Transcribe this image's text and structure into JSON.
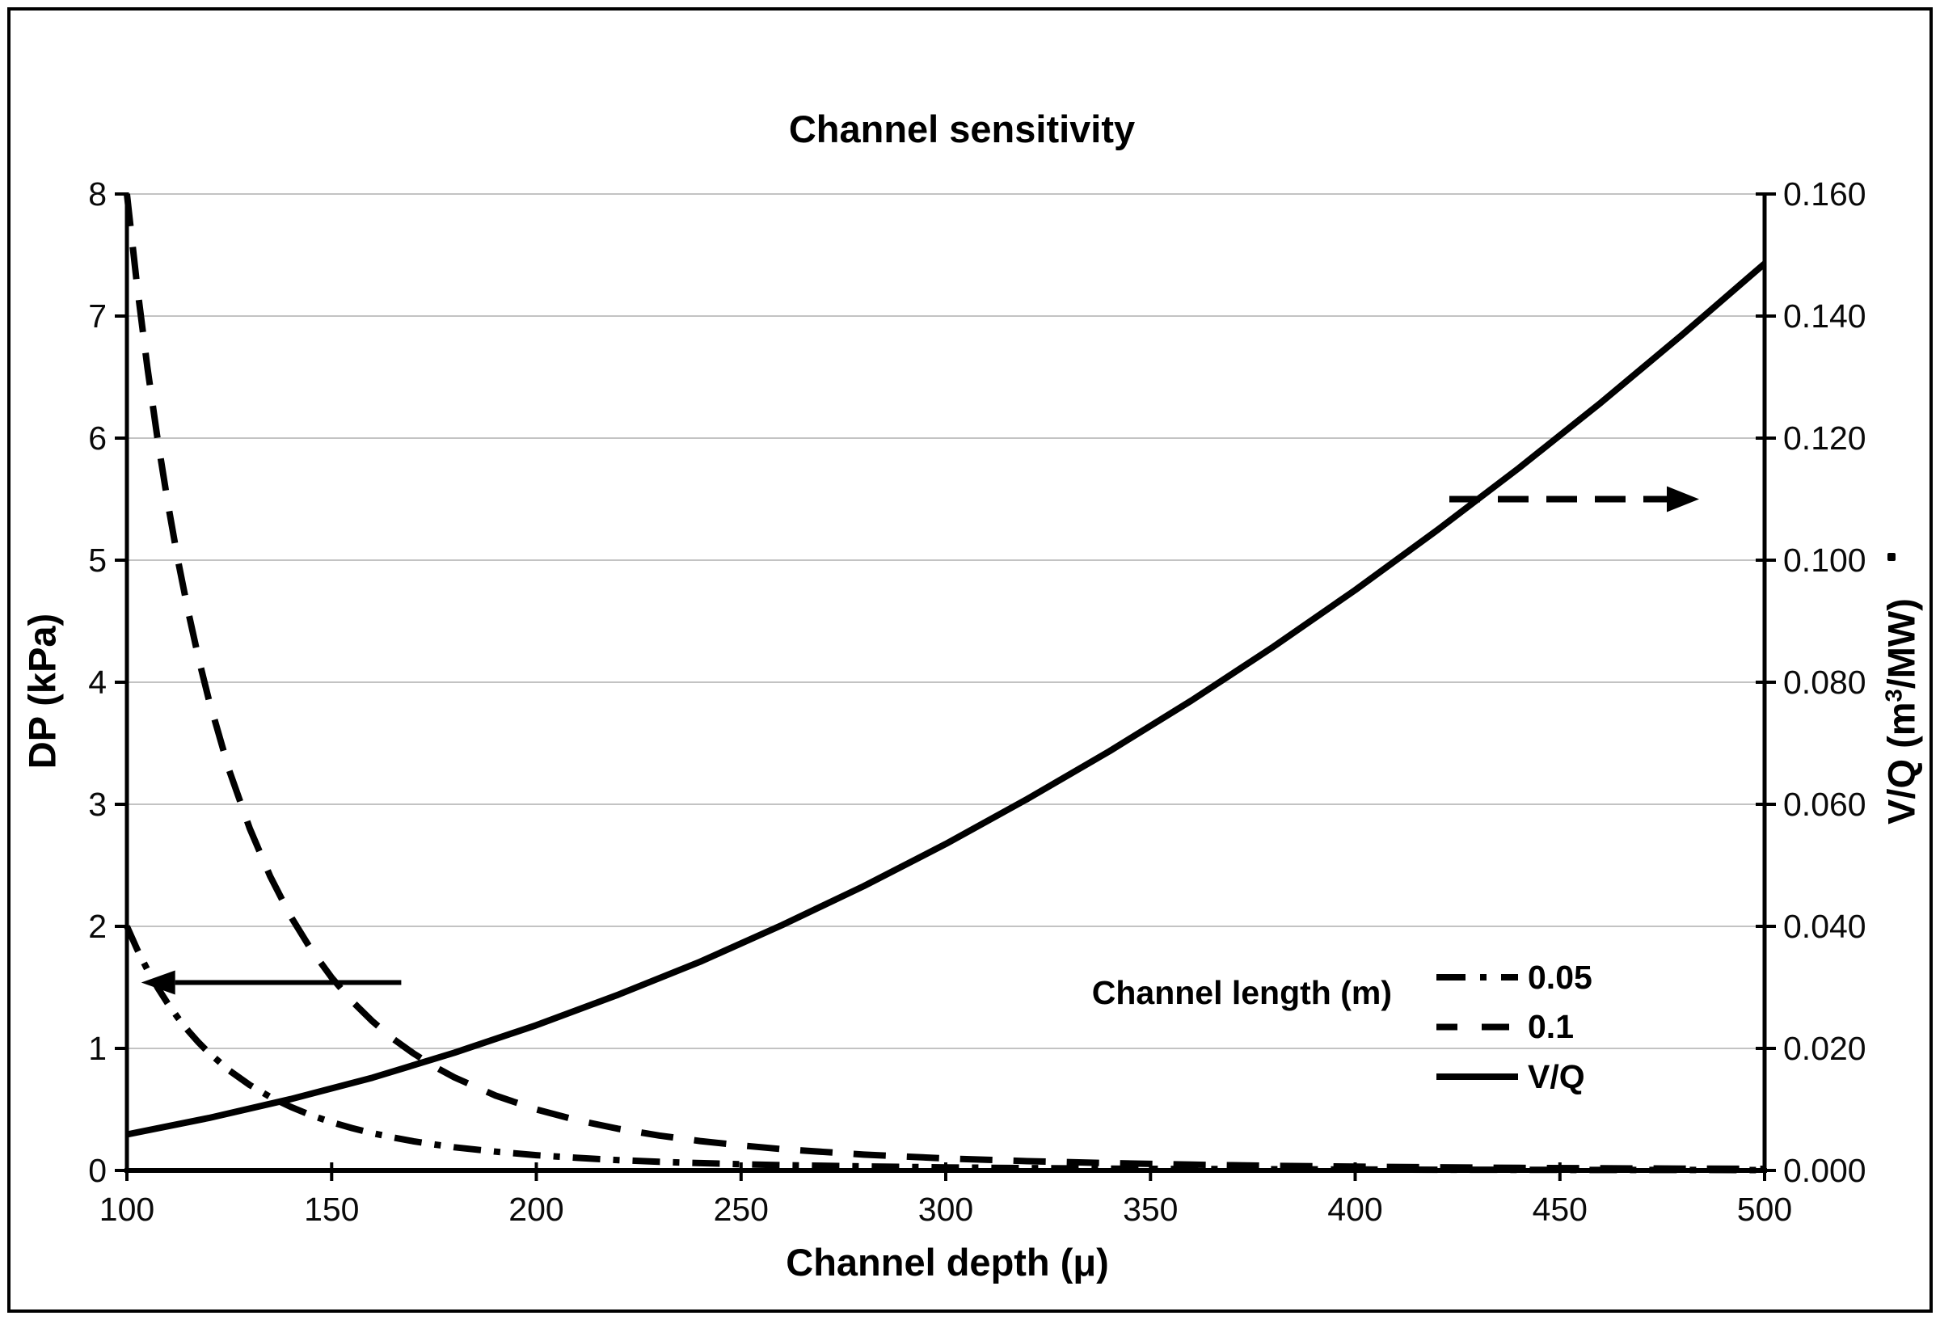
{
  "chart_data": {
    "type": "line",
    "title": "Channel sensitivity",
    "x_axis": {
      "label": "Channel depth (μ)",
      "min": 100,
      "max": 500,
      "tick_values": [
        100,
        150,
        200,
        250,
        300,
        350,
        400,
        450,
        500
      ],
      "tick_labels": [
        "100",
        "150",
        "200",
        "250",
        "300",
        "350",
        "400",
        "450",
        "500"
      ]
    },
    "y_left": {
      "label": "DP (kPa)",
      "min": 0,
      "max": 8,
      "tick_values": [
        0,
        1,
        2,
        3,
        4,
        5,
        6,
        7,
        8
      ],
      "tick_labels": [
        "0",
        "1",
        "2",
        "3",
        "4",
        "5",
        "6",
        "7",
        "8"
      ]
    },
    "y_right": {
      "label_parts": [
        "V/Q (m",
        "3",
        "/MW)"
      ],
      "min": 0,
      "max": 0.16,
      "tick_values": [
        0,
        0.02,
        0.04,
        0.06,
        0.08,
        0.1,
        0.12,
        0.14,
        0.16
      ],
      "tick_labels": [
        "0.000",
        "0.020",
        "0.040",
        "0.060",
        "0.080",
        "0.100",
        "0.120",
        "0.140",
        "0.160"
      ]
    },
    "grid": {
      "horizontal_every_kpa": 1,
      "color": "#c3c3c3"
    },
    "line_color": "#000000",
    "legend": {
      "title": "Channel length (m)",
      "position": "inside-lower-right",
      "entries": [
        {
          "label": "0.05",
          "style": "dash-dot"
        },
        {
          "label": "0.1",
          "style": "dash"
        },
        {
          "label": "V/Q",
          "style": "solid"
        }
      ]
    },
    "series": [
      {
        "name": "0.05",
        "axis": "left",
        "style": "dash-dot",
        "points": [
          [
            100,
            2.0
          ],
          [
            102.5,
            1.811
          ],
          [
            105,
            1.645
          ],
          [
            107.5,
            1.498
          ],
          [
            110,
            1.366
          ],
          [
            112.5,
            1.249
          ],
          [
            115,
            1.143
          ],
          [
            117.5,
            1.049
          ],
          [
            120,
            0.965
          ],
          [
            125,
            0.819
          ],
          [
            130,
            0.7
          ],
          [
            135,
            0.602
          ],
          [
            140,
            0.521
          ],
          [
            145,
            0.452
          ],
          [
            150,
            0.395
          ],
          [
            155,
            0.347
          ],
          [
            160,
            0.305
          ],
          [
            165,
            0.27
          ],
          [
            170,
            0.239
          ],
          [
            175,
            0.213
          ],
          [
            180,
            0.19
          ],
          [
            190,
            0.154
          ],
          [
            200,
            0.125
          ],
          [
            210,
            0.103
          ],
          [
            220,
            0.085
          ],
          [
            230,
            0.071
          ],
          [
            240,
            0.06
          ],
          [
            250,
            0.051
          ],
          [
            260,
            0.044
          ],
          [
            280,
            0.033
          ],
          [
            300,
            0.025
          ],
          [
            320,
            0.019
          ],
          [
            340,
            0.015
          ],
          [
            360,
            0.012
          ],
          [
            380,
            0.01
          ],
          [
            400,
            0.008
          ],
          [
            420,
            0.006
          ],
          [
            440,
            0.005
          ],
          [
            460,
            0.004
          ],
          [
            480,
            0.004
          ],
          [
            500,
            0.003
          ]
        ]
      },
      {
        "name": "0.1",
        "axis": "left",
        "style": "dash",
        "points": [
          [
            100,
            8.0
          ],
          [
            102.5,
            7.242
          ],
          [
            105,
            6.581
          ],
          [
            107.5,
            5.99
          ],
          [
            110,
            5.464
          ],
          [
            112.5,
            4.994
          ],
          [
            115,
            4.574
          ],
          [
            117.5,
            4.197
          ],
          [
            120,
            3.858
          ],
          [
            125,
            3.277
          ],
          [
            130,
            2.801
          ],
          [
            135,
            2.409
          ],
          [
            140,
            2.082
          ],
          [
            145,
            1.81
          ],
          [
            150,
            1.58
          ],
          [
            155,
            1.386
          ],
          [
            160,
            1.221
          ],
          [
            165,
            1.079
          ],
          [
            170,
            0.958
          ],
          [
            175,
            0.853
          ],
          [
            180,
            0.762
          ],
          [
            190,
            0.614
          ],
          [
            200,
            0.5
          ],
          [
            210,
            0.411
          ],
          [
            220,
            0.342
          ],
          [
            230,
            0.286
          ],
          [
            240,
            0.241
          ],
          [
            250,
            0.205
          ],
          [
            260,
            0.175
          ],
          [
            280,
            0.13
          ],
          [
            300,
            0.099
          ],
          [
            320,
            0.076
          ],
          [
            340,
            0.06
          ],
          [
            360,
            0.048
          ],
          [
            380,
            0.038
          ],
          [
            400,
            0.031
          ],
          [
            420,
            0.026
          ],
          [
            440,
            0.021
          ],
          [
            460,
            0.018
          ],
          [
            480,
            0.015
          ],
          [
            500,
            0.013
          ]
        ]
      },
      {
        "name": "V/Q",
        "axis": "right",
        "style": "solid",
        "points": [
          [
            100,
            0.0059
          ],
          [
            120,
            0.0086
          ],
          [
            140,
            0.0117
          ],
          [
            160,
            0.0152
          ],
          [
            180,
            0.0193
          ],
          [
            200,
            0.0238
          ],
          [
            220,
            0.0288
          ],
          [
            240,
            0.0342
          ],
          [
            260,
            0.0402
          ],
          [
            280,
            0.0466
          ],
          [
            300,
            0.0535
          ],
          [
            320,
            0.0609
          ],
          [
            340,
            0.0687
          ],
          [
            360,
            0.077
          ],
          [
            380,
            0.0858
          ],
          [
            400,
            0.0951
          ],
          [
            420,
            0.1049
          ],
          [
            440,
            0.1151
          ],
          [
            460,
            0.1258
          ],
          [
            480,
            0.137
          ],
          [
            500,
            0.1486
          ]
        ]
      }
    ],
    "annotations": {
      "left_arrow": {
        "meaning": "curves read on left axis",
        "y_axis": "left",
        "y_value": 1.54,
        "depth_from": 167,
        "depth_to": 103.5,
        "style": "solid"
      },
      "right_arrow": {
        "meaning": "curve reads on right axis",
        "y_axis": "right",
        "y_value": 0.11,
        "depth_from": 423,
        "depth_to": 484,
        "style": "dash"
      },
      "stray_mark": "."
    }
  }
}
